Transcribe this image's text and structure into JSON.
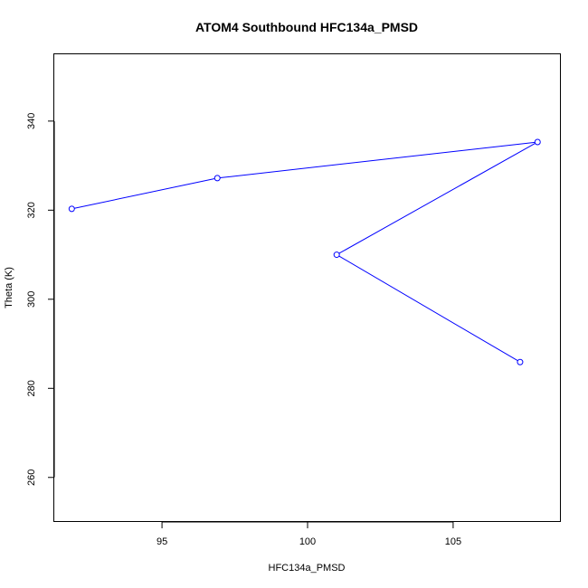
{
  "chart_data": {
    "type": "line",
    "title": "ATOM4 Southbound HFC134a_PMSD",
    "xlabel": "HFC134a_PMSD",
    "ylabel": "Theta (K)",
    "xlim": [
      91.3,
      108.7
    ],
    "ylim": [
      250,
      355
    ],
    "xticks": [
      95,
      100,
      105
    ],
    "yticks": [
      260,
      280,
      300,
      320,
      340
    ],
    "grid": false,
    "series": [
      {
        "color": "#0000ff",
        "marker": "open-circle",
        "x": [
          91.9,
          96.9,
          107.9,
          101.0,
          107.3
        ],
        "y": [
          320.3,
          327.2,
          335.3,
          310.0,
          285.9
        ]
      }
    ]
  }
}
